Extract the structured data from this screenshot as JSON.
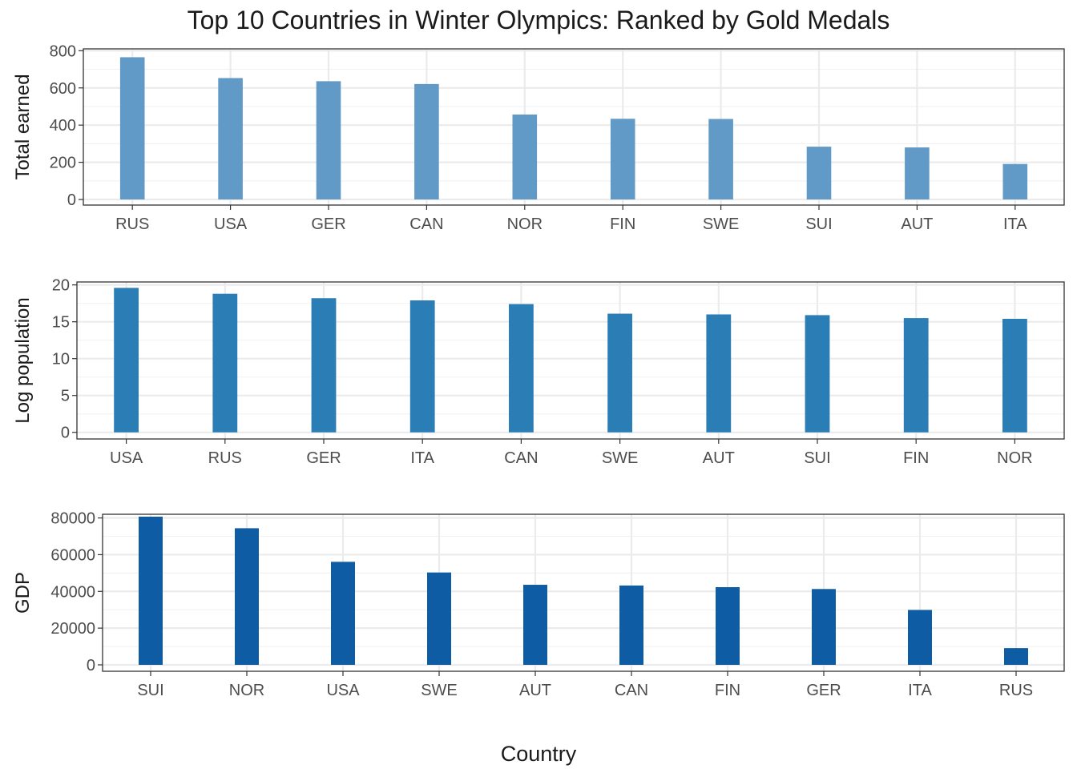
{
  "figure": {
    "title": "Top 10 Countries in Winter Olympics: Ranked by Gold Medals",
    "xlabel": "Country"
  },
  "chart_data": [
    {
      "type": "bar",
      "ylabel": "Total earned",
      "categories": [
        "RUS",
        "USA",
        "GER",
        "CAN",
        "NOR",
        "FIN",
        "SWE",
        "SUI",
        "AUT",
        "ITA"
      ],
      "values": [
        765,
        653,
        636,
        621,
        457,
        434,
        433,
        284,
        280,
        191
      ],
      "ylim": [
        -30,
        810
      ],
      "yticks": [
        0,
        200,
        400,
        600,
        800
      ],
      "color": "#6199C7",
      "grid": true
    },
    {
      "type": "bar",
      "ylabel": "Log population",
      "categories": [
        "USA",
        "RUS",
        "GER",
        "ITA",
        "CAN",
        "SWE",
        "AUT",
        "SUI",
        "FIN",
        "NOR"
      ],
      "values": [
        19.6,
        18.8,
        18.2,
        17.9,
        17.4,
        16.1,
        16.0,
        15.9,
        15.5,
        15.4
      ],
      "ylim": [
        -0.9,
        20.4
      ],
      "yticks": [
        0,
        5,
        10,
        15,
        20
      ],
      "color": "#2B7DB6",
      "grid": true
    },
    {
      "type": "bar",
      "ylabel": "GDP",
      "categories": [
        "SUI",
        "NOR",
        "USA",
        "SWE",
        "AUT",
        "CAN",
        "FIN",
        "GER",
        "ITA",
        "RUS"
      ],
      "values": [
        80700,
        74400,
        56100,
        50300,
        43600,
        43200,
        42300,
        41300,
        29900,
        9100
      ],
      "ylim": [
        -3500,
        82000
      ],
      "yticks": [
        0,
        20000,
        40000,
        60000,
        80000
      ],
      "color": "#0E5CA4",
      "grid": true
    }
  ]
}
